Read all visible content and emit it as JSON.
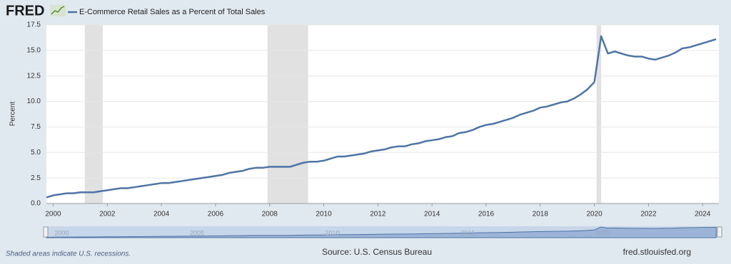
{
  "header": {
    "logo": "FRED"
  },
  "footer": {
    "note": "Shaded areas indicate U.S. recessions.",
    "source": "Source: U.S. Census Bureau",
    "site": "fred.stlouisfed.org"
  },
  "chart_data": {
    "type": "line",
    "ylabel": "Percent",
    "x": [
      1999.75,
      2000,
      2000.25,
      2000.5,
      2000.75,
      2001,
      2001.25,
      2001.5,
      2001.75,
      2002,
      2002.25,
      2002.5,
      2002.75,
      2003,
      2003.25,
      2003.5,
      2003.75,
      2004,
      2004.25,
      2004.5,
      2004.75,
      2005,
      2005.25,
      2005.5,
      2005.75,
      2006,
      2006.25,
      2006.5,
      2006.75,
      2007,
      2007.25,
      2007.5,
      2007.75,
      2008,
      2008.25,
      2008.5,
      2008.75,
      2009,
      2009.25,
      2009.5,
      2009.75,
      2010,
      2010.25,
      2010.5,
      2010.75,
      2011,
      2011.25,
      2011.5,
      2011.75,
      2012,
      2012.25,
      2012.5,
      2012.75,
      2013,
      2013.25,
      2013.5,
      2013.75,
      2014,
      2014.25,
      2014.5,
      2014.75,
      2015,
      2015.25,
      2015.5,
      2015.75,
      2016,
      2016.25,
      2016.5,
      2016.75,
      2017,
      2017.25,
      2017.5,
      2017.75,
      2018,
      2018.25,
      2018.5,
      2018.75,
      2019,
      2019.25,
      2019.5,
      2019.75,
      2020,
      2020.25,
      2020.5,
      2020.75,
      2021,
      2021.25,
      2021.5,
      2021.75,
      2022,
      2022.25,
      2022.5,
      2022.75,
      2023,
      2023.25,
      2023.5,
      2023.75,
      2024,
      2024.25,
      2024.5
    ],
    "series": [
      {
        "name": "E-Commerce Retail Sales as a Percent of Total Sales",
        "color": "#4e74a6",
        "values": [
          0.6,
          0.8,
          0.9,
          1.0,
          1.0,
          1.1,
          1.1,
          1.1,
          1.2,
          1.3,
          1.4,
          1.5,
          1.5,
          1.6,
          1.7,
          1.8,
          1.9,
          2.0,
          2.0,
          2.1,
          2.2,
          2.3,
          2.4,
          2.5,
          2.6,
          2.7,
          2.8,
          3.0,
          3.1,
          3.2,
          3.4,
          3.5,
          3.5,
          3.6,
          3.6,
          3.6,
          3.6,
          3.8,
          4.0,
          4.1,
          4.1,
          4.2,
          4.4,
          4.6,
          4.6,
          4.7,
          4.8,
          4.9,
          5.1,
          5.2,
          5.3,
          5.5,
          5.6,
          5.6,
          5.8,
          5.9,
          6.1,
          6.2,
          6.3,
          6.5,
          6.6,
          6.9,
          7.0,
          7.2,
          7.5,
          7.7,
          7.8,
          8.0,
          8.2,
          8.4,
          8.7,
          8.9,
          9.1,
          9.4,
          9.5,
          9.7,
          9.9,
          10.0,
          10.3,
          10.7,
          11.2,
          11.9,
          16.4,
          14.7,
          14.9,
          14.7,
          14.5,
          14.4,
          14.4,
          14.2,
          14.1,
          14.3,
          14.5,
          14.8,
          15.2,
          15.3,
          15.5,
          15.7,
          15.9,
          16.1
        ]
      }
    ],
    "recessions": [
      [
        2001.17,
        2001.83
      ],
      [
        2007.92,
        2009.42
      ],
      [
        2020.08,
        2020.25
      ]
    ],
    "xlim": [
      1999.75,
      2024.6
    ],
    "xticks": [
      2000,
      2002,
      2004,
      2006,
      2008,
      2010,
      2012,
      2014,
      2016,
      2018,
      2020,
      2022,
      2024
    ],
    "ylim": [
      0,
      17.5
    ],
    "yticks": [
      {
        "value": 0,
        "label": "0.0"
      },
      2.5,
      {
        "value": 5,
        "label": "5.0"
      },
      7.5,
      {
        "value": 10,
        "label": "10.0"
      },
      12.5,
      {
        "value": 15,
        "label": "15.0"
      },
      17.5
    ],
    "grid": true,
    "navigator_xticks": [
      2000,
      2005,
      2010,
      2015,
      2020
    ]
  }
}
